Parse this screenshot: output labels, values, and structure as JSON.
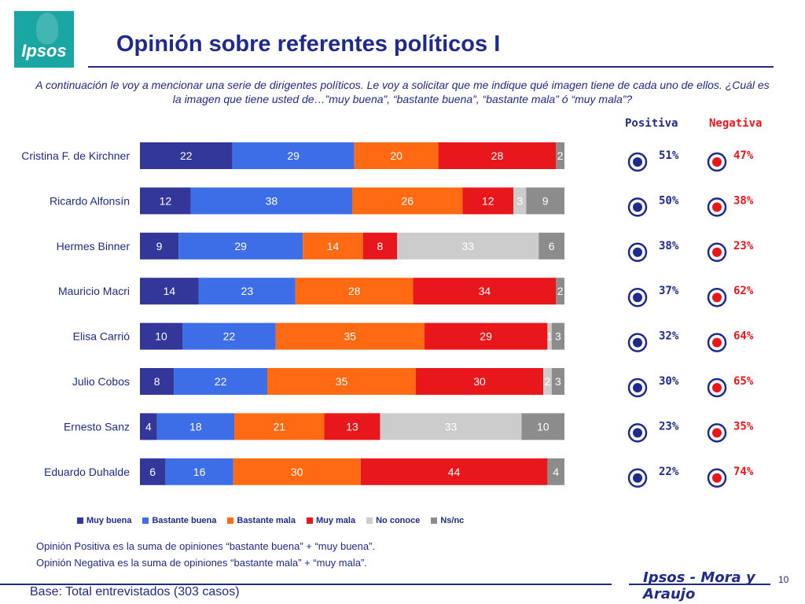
{
  "logo": {
    "text": "Ipsos"
  },
  "title": "Opinión sobre referentes políticos I",
  "question": "A continuación le voy a mencionar  una serie de dirigentes políticos. Le voy a solicitar que me indique qué imagen tiene de cada uno de ellos. ¿Cuál es la imagen que tiene usted de…”muy buena”, “bastante buena”, “bastante mala” ó “muy mala”?",
  "headers": {
    "positiva": "Positiva",
    "negativa": "Negativa"
  },
  "colors": {
    "muy_buena": "#33379a",
    "bastante_buena": "#3d6ee8",
    "bastante_mala": "#ff6a13",
    "muy_mala": "#e8171b",
    "no_conoce": "#cccccc",
    "ns_nc": "#8c8c8c",
    "accent": "#1e2a8c",
    "negative": "#e8171b"
  },
  "chart_data": {
    "type": "bar",
    "orientation": "horizontal",
    "stacked": true,
    "percent_stacked": true,
    "categories": [
      "Cristina F. de Kirchner",
      "Ricardo Alfonsín",
      "Hermes Binner",
      "Mauricio Macri",
      "Elisa Carrió",
      "Julio Cobos",
      "Ernesto Sanz",
      "Eduardo Duhalde"
    ],
    "series": [
      {
        "name": "Muy buena",
        "values": [
          22,
          12,
          9,
          14,
          10,
          8,
          4,
          6
        ]
      },
      {
        "name": "Bastante buena",
        "values": [
          29,
          38,
          29,
          23,
          22,
          22,
          18,
          16
        ]
      },
      {
        "name": "Bastante mala",
        "values": [
          20,
          26,
          14,
          28,
          35,
          35,
          21,
          30
        ]
      },
      {
        "name": "Muy mala",
        "values": [
          28,
          12,
          8,
          34,
          29,
          30,
          13,
          44
        ]
      },
      {
        "name": "No conoce",
        "values": [
          0,
          3,
          33,
          0,
          1,
          2,
          33,
          0
        ]
      },
      {
        "name": "Ns/nc",
        "values": [
          2,
          9,
          6,
          2,
          3,
          3,
          10,
          4
        ]
      }
    ],
    "legend_position": "bottom",
    "grid": false,
    "positiva": [
      "51%",
      "50%",
      "38%",
      "37%",
      "32%",
      "30%",
      "23%",
      "22%"
    ],
    "negativa": [
      "47%",
      "38%",
      "23%",
      "62%",
      "64%",
      "65%",
      "35%",
      "74%"
    ]
  },
  "notes": [
    "Opinión Positiva es la suma de opiniones “bastante buena” + “muy buena”.",
    "Opinión Negativa es la suma de opiniones “bastante mala” + “muy mala”."
  ],
  "footer": {
    "base": "Base: Total entrevistados (303 casos)",
    "brand": "Ipsos - Mora y Araujo",
    "page": "10"
  }
}
